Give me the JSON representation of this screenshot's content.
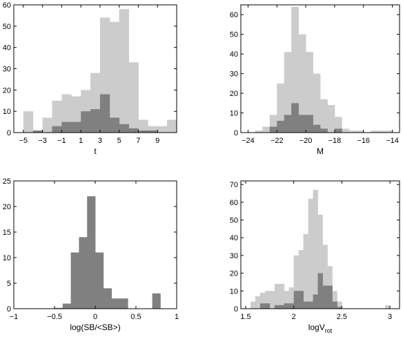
{
  "chart_data": [
    {
      "type": "bar",
      "panel": "top-left",
      "xlabel": "t",
      "xlim": [
        -6,
        11
      ],
      "ylim": [
        0,
        60
      ],
      "xticks": [
        -5,
        -3,
        -1,
        1,
        3,
        5,
        7,
        9
      ],
      "yticks": [
        0,
        10,
        20,
        30,
        40,
        50,
        60
      ],
      "bin_edges": [
        -6,
        -5,
        -4,
        -3,
        -2,
        -1,
        0,
        1,
        2,
        3,
        4,
        5,
        6,
        7,
        8,
        9,
        10,
        11
      ],
      "series": [
        {
          "color": "#cccccc",
          "values": [
            0,
            10,
            1,
            7,
            15,
            18,
            17,
            20,
            28,
            54,
            52,
            58,
            33,
            6,
            3,
            3,
            6
          ]
        },
        {
          "color": "#808080",
          "values": [
            0,
            0,
            1,
            0,
            3,
            5,
            5,
            10,
            11,
            18,
            7,
            4,
            2,
            1,
            1,
            0,
            0
          ]
        }
      ]
    },
    {
      "type": "bar",
      "panel": "top-right",
      "xlabel": "M",
      "xlim": [
        -24.5,
        -13.5
      ],
      "ylim": [
        0,
        65
      ],
      "xticks": [
        -24,
        -22,
        -20,
        -18,
        -16,
        -14
      ],
      "yticks": [
        0,
        10,
        20,
        30,
        40,
        50,
        60
      ],
      "bin_edges": [
        -24.5,
        -24.0,
        -23.5,
        -23.0,
        -22.5,
        -22.0,
        -21.5,
        -21.0,
        -20.5,
        -20.0,
        -19.5,
        -19.0,
        -18.5,
        -18.0,
        -17.5,
        -17.0,
        -16.5,
        -16.0,
        -15.5,
        -15.0,
        -14.5,
        -14.0,
        -13.5
      ],
      "series": [
        {
          "color": "#cccccc",
          "values": [
            0,
            0,
            1,
            3,
            9,
            25,
            41,
            64,
            50,
            41,
            30,
            17,
            14,
            8,
            2,
            1,
            1,
            0,
            1,
            1,
            1,
            0
          ]
        },
        {
          "color": "#808080",
          "values": [
            0,
            0,
            0,
            0,
            3,
            6,
            9,
            15,
            9,
            9,
            4,
            2,
            0,
            2,
            0,
            0,
            0,
            0,
            0,
            0,
            0,
            0
          ]
        }
      ]
    },
    {
      "type": "bar",
      "panel": "bottom-left",
      "xlabel": "log(SB/<SB>)",
      "xlim": [
        -1,
        1
      ],
      "ylim": [
        0,
        25
      ],
      "xticks": [
        -1,
        -0.5,
        0,
        0.5,
        1
      ],
      "yticks": [
        0,
        5,
        10,
        15,
        20,
        25
      ],
      "bin_edges": [
        -0.9,
        -0.8,
        -0.7,
        -0.6,
        -0.5,
        -0.4,
        -0.3,
        -0.2,
        -0.1,
        0,
        0.1,
        0.2,
        0.3,
        0.4,
        0.5,
        0.6,
        0.7,
        0.8,
        0.9
      ],
      "series": [
        {
          "color": "#808080",
          "values": [
            0,
            0,
            0,
            0,
            0.15,
            1,
            11,
            14,
            22,
            11,
            4,
            2,
            2,
            0,
            0,
            0,
            3,
            0
          ]
        }
      ]
    },
    {
      "type": "bar",
      "panel": "bottom-right",
      "xlabel": "logV",
      "xlabel_sub": "rot",
      "xlim": [
        1.45,
        3.1
      ],
      "ylim": [
        0,
        72
      ],
      "xticks": [
        1.5,
        2,
        2.5,
        3
      ],
      "yticks": [
        0,
        10,
        20,
        30,
        40,
        50,
        60,
        70
      ],
      "bin_edges": [
        1.55,
        1.6,
        1.65,
        1.7,
        1.75,
        1.8,
        1.85,
        1.9,
        1.95,
        2.0,
        2.05,
        2.1,
        2.15,
        2.2,
        2.25,
        2.3,
        2.35,
        2.4,
        2.45,
        2.5,
        2.55,
        2.6,
        2.65,
        2.7,
        2.75,
        2.8,
        2.85,
        2.9,
        2.95,
        3.0,
        3.05
      ],
      "series": [
        {
          "color": "#cccccc",
          "values": [
            4,
            7,
            9,
            10,
            10,
            14,
            14,
            10,
            12,
            30,
            33,
            42,
            62,
            67,
            53,
            36,
            24,
            10,
            4,
            0,
            0,
            0,
            0,
            0,
            0,
            0,
            0,
            0,
            2,
            0
          ]
        },
        {
          "color": "#808080",
          "values": [
            0,
            0,
            3,
            3,
            0,
            2,
            2,
            3,
            3,
            10,
            10,
            4,
            4,
            8,
            20,
            13,
            13,
            4,
            1,
            0,
            0,
            0,
            0,
            0,
            0,
            0,
            0,
            0,
            0,
            0
          ]
        }
      ]
    }
  ]
}
